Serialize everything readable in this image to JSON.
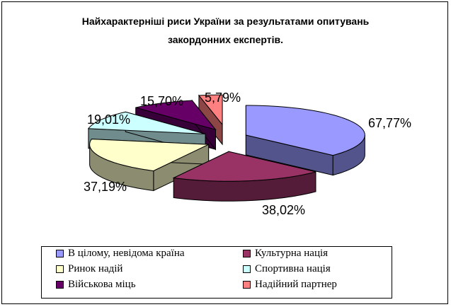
{
  "chart_data": {
    "type": "pie",
    "title_line1": "Найхарактерніші риси України за результатами опитувань",
    "title_line2": "закордонних експертів.",
    "slices": [
      {
        "label": "В цілому, невідома країна",
        "value": 67.77,
        "display": "67,77%",
        "color": "#9999ff"
      },
      {
        "label": "Культурна нація",
        "value": 38.02,
        "display": "38,02%",
        "color": "#993366"
      },
      {
        "label": "Ринок надій",
        "value": 37.19,
        "display": "37,19%",
        "color": "#ffffcc"
      },
      {
        "label": "Спортивна нація",
        "value": 19.01,
        "display": "19,01%",
        "color": "#ccffff"
      },
      {
        "label": "Військова міць",
        "value": 15.7,
        "display": "15,70%",
        "color": "#660066"
      },
      {
        "label": "Надійний партнер",
        "value": 5.79,
        "display": "5,79%",
        "color": "#ff8080"
      }
    ],
    "legend_position": "bottom"
  }
}
